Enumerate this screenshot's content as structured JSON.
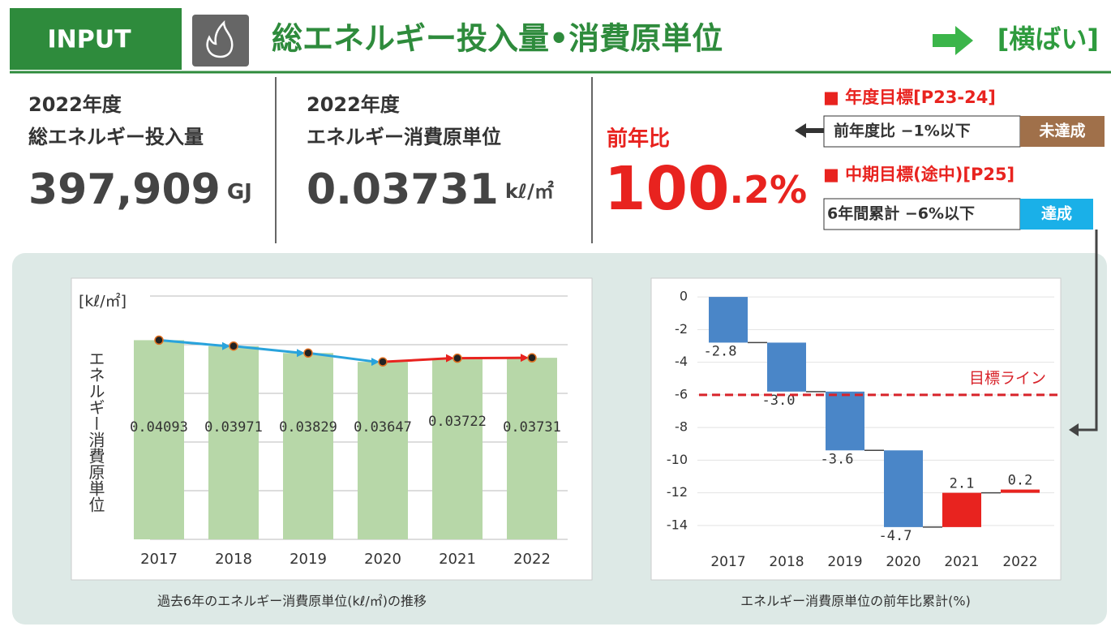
{
  "header": {
    "badge": "INPUT",
    "title": "総エネルギー投入量•消費原単位",
    "trend": "[横ばい]"
  },
  "stats": [
    {
      "year": "2022年度",
      "label": "総エネルギー投入量",
      "value": "397,909",
      "unit": "GJ"
    },
    {
      "year": "2022年度",
      "label": "エネルギー消費原単位",
      "value": "0.03731",
      "unit": "kℓ/㎡"
    }
  ],
  "yoy": {
    "label": "前年比",
    "value_int": "100",
    "value_rest": ".2%"
  },
  "targets": [
    {
      "heading": "■ 年度目標[P23-24]",
      "text": "前年度比 −1%以下",
      "status": "未達成",
      "status_color": "#a0704a"
    },
    {
      "heading": "■ 中期目標(途中)[P25]",
      "text": "6年間累計 −6%以下",
      "status": "達成",
      "status_color": "#1ab0e8"
    }
  ],
  "chart_data": [
    {
      "type": "bar_line",
      "y_label_top": "[kℓ/㎡]",
      "y_label": "エネルギー消費原単位",
      "categories": [
        "2017",
        "2018",
        "2019",
        "2020",
        "2021",
        "2022"
      ],
      "values": [
        0.04093,
        0.03971,
        0.03829,
        0.03647,
        0.03722,
        0.03731
      ],
      "color": "#b7d7a8",
      "line_colors": [
        "#29a3dc",
        "#29a3dc",
        "#29a3dc",
        "#e8231f",
        "#e8231f"
      ],
      "ylim": [
        0,
        0.05
      ],
      "yticks": [
        0,
        0.01,
        0.02,
        0.03,
        0.04,
        0.05
      ],
      "grid": true,
      "caption": "過去6年のエネルギー消費原単位(kℓ/㎡)の推移"
    },
    {
      "type": "waterfall",
      "categories": [
        "2017",
        "2018",
        "2019",
        "2020",
        "2021",
        "2022"
      ],
      "values": [
        -2.8,
        -3.0,
        -3.6,
        -4.7,
        2.1,
        0.2
      ],
      "value_labels": [
        "-2.8",
        "-3.0",
        "-3.6",
        "-4.7",
        "2.1",
        "0.2"
      ],
      "neg_color": "#4a86c8",
      "pos_color": "#e8231f",
      "ylim": [
        -15,
        0.6
      ],
      "yticks": [
        0,
        -2,
        -4,
        -6,
        -8,
        -10,
        -12,
        -14
      ],
      "grid": true,
      "target": -6,
      "target_label": "目標ライン",
      "caption": "エネルギー消費原単位の前年比累計(%)"
    }
  ]
}
